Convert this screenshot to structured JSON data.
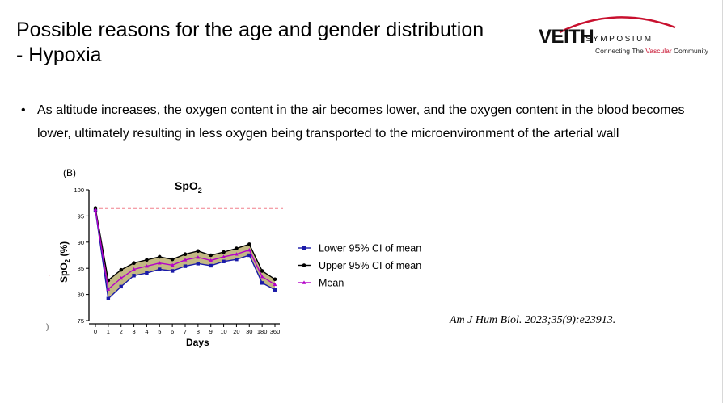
{
  "slide": {
    "title_line1": "Possible reasons for the age and gender distribution",
    "title_line2": "- Hypoxia",
    "bullet": "As altitude increases, the oxygen content in the air becomes lower, and the oxygen content in the blood becomes lower, ultimately resulting in less oxygen being transported to the microenvironment of the arterial wall",
    "citation": "Am J Hum Biol. 2023;35(9):e23913."
  },
  "logo": {
    "main": "VEITH",
    "sub": "SYMPOSIUM",
    "tag_part1": "Connecting The ",
    "tag_highlight": "Vascular",
    "tag_part2": " Community"
  },
  "colors": {
    "lower": "#1a1aa8",
    "upper": "#000000",
    "mean": "#b400c8",
    "band": "#b9ab6e",
    "reference": "#e2001a",
    "logo_accent": "#c8102e"
  },
  "chart_data": {
    "type": "line",
    "panel_label": "(B)",
    "title_main": "SpO",
    "title_sub": "2",
    "xlabel": "Days",
    "ylabel_main": "SpO",
    "ylabel_sub": "2",
    "ylabel_tail": " (%)",
    "categories": [
      "0",
      "1",
      "2",
      "3",
      "4",
      "5",
      "6",
      "7",
      "8",
      "9",
      "10",
      "20",
      "30",
      "180",
      "360"
    ],
    "ylim": [
      75,
      100
    ],
    "yticks": [
      75,
      80,
      85,
      90,
      95,
      100
    ],
    "reference_line": 96.5,
    "series": [
      {
        "name": "Lower 95% CI of mean",
        "marker": "square",
        "values": [
          96.0,
          79.2,
          81.5,
          83.6,
          84.1,
          84.8,
          84.5,
          85.4,
          85.9,
          85.5,
          86.3,
          86.7,
          87.5,
          82.2,
          80.9
        ]
      },
      {
        "name": "Upper 95% CI of mean",
        "marker": "circle",
        "values": [
          96.5,
          82.7,
          84.7,
          86.0,
          86.6,
          87.2,
          86.7,
          87.7,
          88.3,
          87.5,
          88.1,
          88.8,
          89.6,
          84.5,
          82.9
        ]
      },
      {
        "name": "Mean",
        "marker": "triangle",
        "values": [
          96.2,
          81.0,
          83.1,
          84.8,
          85.4,
          86.0,
          85.6,
          86.6,
          87.1,
          86.5,
          87.2,
          87.7,
          88.5,
          83.4,
          81.9
        ]
      }
    ]
  }
}
